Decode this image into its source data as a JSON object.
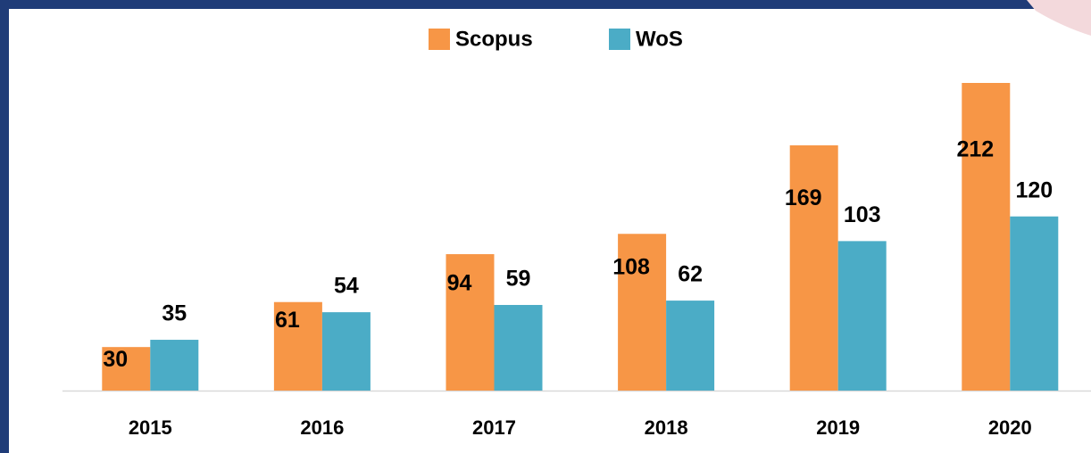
{
  "chart_data": {
    "type": "bar",
    "categories": [
      "2015",
      "2016",
      "2017",
      "2018",
      "2019",
      "2020"
    ],
    "series": [
      {
        "name": "Scopus",
        "color": "#f79646",
        "values": [
          30,
          61,
          94,
          108,
          169,
          212
        ]
      },
      {
        "name": "WoS",
        "color": "#4bacc6",
        "values": [
          35,
          54,
          59,
          62,
          103,
          120
        ]
      }
    ],
    "legend": "top"
  }
}
